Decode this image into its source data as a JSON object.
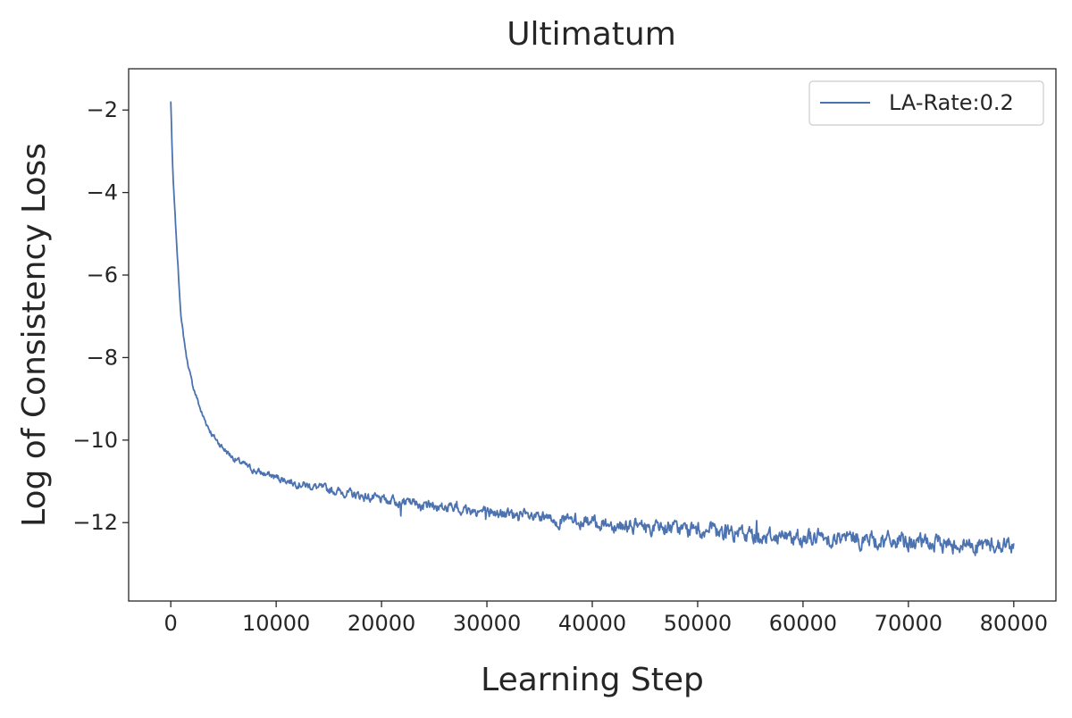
{
  "chart_data": {
    "type": "line",
    "title": "Ultimatum",
    "xlabel": "Learning Step",
    "ylabel": "Log of Consistency Loss",
    "xlim": [
      -4000,
      84000
    ],
    "ylim": [
      -13.9,
      -1.0
    ],
    "xticks": [
      0,
      10000,
      20000,
      30000,
      40000,
      50000,
      60000,
      70000,
      80000
    ],
    "xtick_labels": [
      "0",
      "10000",
      "20000",
      "30000",
      "40000",
      "50000",
      "60000",
      "70000",
      "80000"
    ],
    "yticks": [
      -12,
      -10,
      -8,
      -6,
      -4,
      -2
    ],
    "ytick_labels": [
      "−12",
      "−10",
      "−8",
      "−6",
      "−4",
      "−2"
    ],
    "grid": false,
    "legend": {
      "position": "top-right",
      "entries": [
        "LA-Rate:0.2"
      ]
    },
    "series": [
      {
        "name": "LA-Rate:0.2",
        "color": "#4c72b0",
        "x": [
          0,
          200,
          500,
          800,
          1000,
          1500,
          2000,
          3000,
          4000,
          5000,
          6000,
          8000,
          10000,
          12000,
          15000,
          18000,
          20000,
          25000,
          30000,
          35000,
          40000,
          45000,
          50000,
          55000,
          60000,
          65000,
          70000,
          75000,
          80000
        ],
        "y": [
          -1.8,
          -3.6,
          -5.0,
          -6.3,
          -7.1,
          -8.0,
          -8.6,
          -9.4,
          -9.9,
          -10.2,
          -10.45,
          -10.75,
          -10.9,
          -11.05,
          -11.2,
          -11.35,
          -11.45,
          -11.6,
          -11.75,
          -11.9,
          -12.0,
          -12.1,
          -12.2,
          -12.3,
          -12.35,
          -12.4,
          -12.48,
          -12.52,
          -12.55
        ]
      }
    ]
  }
}
